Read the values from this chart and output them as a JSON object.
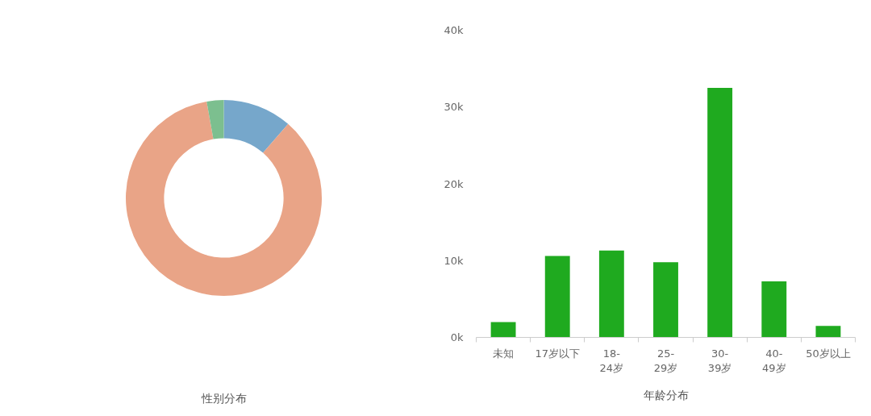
{
  "chart_data": [
    {
      "type": "donut",
      "title": "性别分布",
      "categories": [
        null,
        null,
        null
      ],
      "values": [
        11.4,
        85.8,
        2.8
      ],
      "colors": [
        "#76a7cb",
        "#e9a487",
        "#7cbf8f"
      ]
    },
    {
      "type": "bar",
      "title": "年龄分布",
      "categories": [
        "未知",
        "17岁以下",
        "18-24岁",
        "25-29岁",
        "30-39岁",
        "40-49岁",
        "50岁以上"
      ],
      "values": [
        2000,
        10600,
        11300,
        9800,
        32500,
        7300,
        1500
      ],
      "color": "#1faa1f",
      "ylim": [
        0,
        40000
      ],
      "yticks": [
        {
          "value": 0,
          "label": "0k"
        },
        {
          "value": 10000,
          "label": "10k"
        },
        {
          "value": 20000,
          "label": "20k"
        },
        {
          "value": 30000,
          "label": "30k"
        },
        {
          "value": 40000,
          "label": "40k"
        }
      ],
      "grid": false
    }
  ]
}
